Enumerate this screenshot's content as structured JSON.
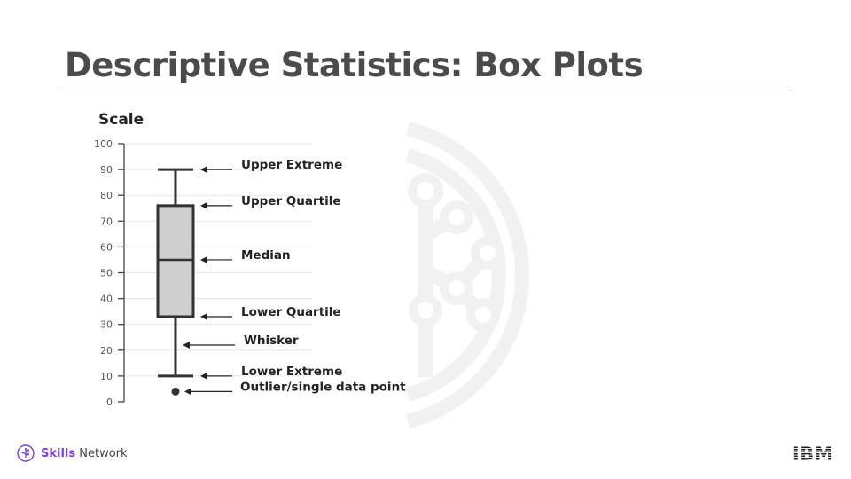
{
  "slide": {
    "title": "Descriptive Statistics: Box Plots"
  },
  "footer": {
    "brand_bold": "Skills",
    "brand_rest": " Network",
    "brand_icon": "skills-network-logo-icon",
    "logo_text": "IBM",
    "colors": {
      "brand_accent": "#7b3fe0",
      "text": "#444444"
    }
  },
  "chart_data": {
    "type": "box",
    "axis_title": "Scale",
    "ylim": [
      0,
      100
    ],
    "yticks": [
      0,
      10,
      20,
      30,
      40,
      50,
      60,
      70,
      80,
      90,
      100
    ],
    "ytick_labels": [
      "0",
      "10",
      "20",
      "30",
      "40",
      "50",
      "60",
      "70",
      "80",
      "90",
      "100"
    ],
    "grid": true,
    "box": {
      "upper_extreme": 90,
      "upper_quartile": 76,
      "median": 55,
      "lower_quartile": 33,
      "lower_extreme": 10,
      "outliers": [
        4
      ]
    },
    "annotations": [
      {
        "label": "Upper Extreme",
        "value": 90
      },
      {
        "label": "Upper Quartile",
        "value": 76
      },
      {
        "label": "Median",
        "value": 55
      },
      {
        "label": "Lower Quartile",
        "value": 33
      },
      {
        "label": "Whisker",
        "value": 22
      },
      {
        "label": "Lower Extreme",
        "value": 10
      },
      {
        "label": "Outlier/single data point",
        "value": 4
      }
    ],
    "colors": {
      "box_fill": "#cfcfcf",
      "stroke": "#333333",
      "grid": "#e6e6e6"
    }
  }
}
